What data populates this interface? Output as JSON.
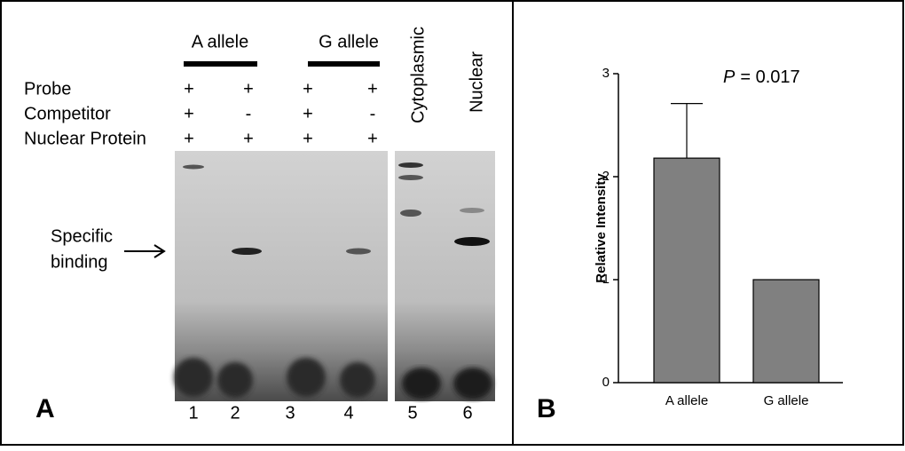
{
  "panel_a": {
    "label": "A",
    "groups": [
      "A allele",
      "G allele"
    ],
    "extracts": [
      "Cytoplasmic",
      "Nuclear"
    ],
    "row_labels": [
      "Probe",
      "Competitor",
      "Nuclear Protein"
    ],
    "signs": [
      [
        "+",
        "+",
        "+",
        "+"
      ],
      [
        "+",
        "-",
        "+",
        "-"
      ],
      [
        "+",
        "+",
        "+",
        "+"
      ]
    ],
    "annotation": [
      "Specific",
      "binding"
    ],
    "lanes": [
      "1",
      "2",
      "3",
      "4",
      "5",
      "6"
    ]
  },
  "chart_data": {
    "type": "bar",
    "panel_label": "B",
    "annotation": [
      "P",
      "= 0.017"
    ],
    "ylabel": "Relative Intensity",
    "categories": [
      "A allele",
      "G allele"
    ],
    "values": [
      2.18,
      1.0
    ],
    "errors": [
      0.53,
      null
    ],
    "color": "#808080",
    "ylim": [
      0,
      3
    ],
    "yticks": [
      0,
      1,
      2,
      3
    ]
  }
}
